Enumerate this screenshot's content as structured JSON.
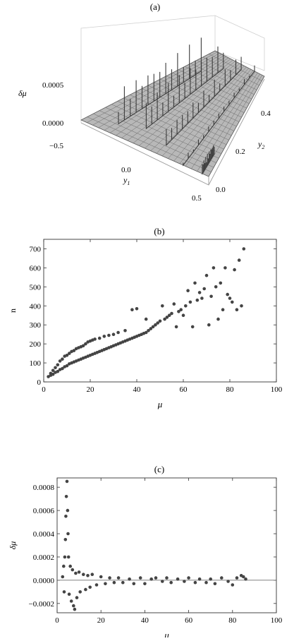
{
  "panels": {
    "a": {
      "label": "(a)",
      "zlabel": "δμ",
      "xlabel": "y",
      "xlabel_sub": "1",
      "ylabel": "y",
      "ylabel_sub": "2",
      "z_ticks": [
        "0.0005",
        "0.0000"
      ],
      "x_ticks": [
        "−0.5",
        "0.0",
        "0.5"
      ],
      "y_ticks": [
        "0.4",
        "0.2",
        "0.0"
      ],
      "surface_color": "#b8b8b8"
    },
    "b": {
      "label": "(b)"
    },
    "c": {
      "label": "(c)"
    }
  },
  "chart_data": [
    {
      "id": "a",
      "type": "surface",
      "title": "(a)",
      "xlabel": "y1",
      "ylabel": "y2",
      "zlabel": "δμ",
      "xlim": [
        -0.5,
        0.5
      ],
      "ylim": [
        0.0,
        0.5
      ],
      "zlim": [
        -0.0001,
        0.0008
      ],
      "x_ticks": [
        -0.5,
        0.0,
        0.5
      ],
      "y_ticks": [
        0.0,
        0.2,
        0.4
      ],
      "z_ticks": [
        0.0,
        0.0005
      ],
      "ridges": [
        {
          "x": -0.3,
          "y0": 0.05,
          "y1": 0.4,
          "peak": 0.0006
        },
        {
          "x": -0.12,
          "y0": 0.08,
          "y1": 0.45,
          "peak": 0.0005
        },
        {
          "x": 0.1,
          "y0": 0.05,
          "y1": 0.48,
          "peak": 0.0003
        },
        {
          "x": 0.3,
          "y0": 0.0,
          "y1": 0.5,
          "peak": 0.0001
        },
        {
          "x": 0.45,
          "y0": 0.0,
          "y1": 0.1,
          "peak": 0.0002
        }
      ]
    },
    {
      "id": "b",
      "type": "scatter",
      "title": "(b)",
      "xlabel": "μ",
      "ylabel": "n",
      "xlim": [
        0,
        100
      ],
      "ylim": [
        0,
        750
      ],
      "x_ticks": [
        0,
        20,
        40,
        60,
        80,
        100
      ],
      "y_ticks": [
        0,
        100,
        200,
        300,
        400,
        500,
        600,
        700
      ],
      "point_color": "#444444",
      "points": [
        [
          2,
          28
        ],
        [
          3,
          35
        ],
        [
          3,
          45
        ],
        [
          4,
          40
        ],
        [
          4,
          60
        ],
        [
          5,
          50
        ],
        [
          5,
          75
        ],
        [
          6,
          55
        ],
        [
          6,
          90
        ],
        [
          7,
          65
        ],
        [
          7,
          110
        ],
        [
          8,
          70
        ],
        [
          8,
          120
        ],
        [
          9,
          80
        ],
        [
          9,
          135
        ],
        [
          10,
          85
        ],
        [
          10,
          140
        ],
        [
          11,
          95
        ],
        [
          11,
          150
        ],
        [
          12,
          100
        ],
        [
          12,
          160
        ],
        [
          13,
          105
        ],
        [
          13,
          165
        ],
        [
          14,
          110
        ],
        [
          14,
          175
        ],
        [
          15,
          115
        ],
        [
          15,
          180
        ],
        [
          16,
          120
        ],
        [
          16,
          185
        ],
        [
          17,
          125
        ],
        [
          17,
          190
        ],
        [
          18,
          130
        ],
        [
          18,
          200
        ],
        [
          19,
          135
        ],
        [
          19,
          210
        ],
        [
          20,
          140
        ],
        [
          20,
          215
        ],
        [
          21,
          145
        ],
        [
          21,
          220
        ],
        [
          22,
          150
        ],
        [
          22,
          225
        ],
        [
          23,
          155
        ],
        [
          24,
          160
        ],
        [
          24,
          230
        ],
        [
          25,
          165
        ],
        [
          26,
          170
        ],
        [
          26,
          240
        ],
        [
          27,
          175
        ],
        [
          28,
          180
        ],
        [
          28,
          245
        ],
        [
          29,
          185
        ],
        [
          30,
          190
        ],
        [
          30,
          250
        ],
        [
          31,
          195
        ],
        [
          32,
          200
        ],
        [
          32,
          260
        ],
        [
          33,
          205
        ],
        [
          34,
          210
        ],
        [
          35,
          215
        ],
        [
          35,
          270
        ],
        [
          36,
          220
        ],
        [
          37,
          225
        ],
        [
          38,
          230
        ],
        [
          38,
          380
        ],
        [
          39,
          235
        ],
        [
          40,
          240
        ],
        [
          40,
          385
        ],
        [
          41,
          245
        ],
        [
          42,
          250
        ],
        [
          43,
          255
        ],
        [
          44,
          260
        ],
        [
          44,
          330
        ],
        [
          45,
          270
        ],
        [
          46,
          280
        ],
        [
          47,
          290
        ],
        [
          48,
          300
        ],
        [
          49,
          310
        ],
        [
          50,
          320
        ],
        [
          51,
          400
        ],
        [
          52,
          330
        ],
        [
          53,
          340
        ],
        [
          54,
          350
        ],
        [
          55,
          360
        ],
        [
          56,
          410
        ],
        [
          57,
          290
        ],
        [
          58,
          370
        ],
        [
          59,
          380
        ],
        [
          60,
          350
        ],
        [
          61,
          400
        ],
        [
          62,
          480
        ],
        [
          63,
          420
        ],
        [
          64,
          290
        ],
        [
          65,
          520
        ],
        [
          66,
          430
        ],
        [
          67,
          470
        ],
        [
          68,
          440
        ],
        [
          69,
          490
        ],
        [
          70,
          560
        ],
        [
          71,
          300
        ],
        [
          72,
          450
        ],
        [
          73,
          600
        ],
        [
          74,
          500
        ],
        [
          75,
          330
        ],
        [
          76,
          520
        ],
        [
          77,
          380
        ],
        [
          78,
          600
        ],
        [
          79,
          460
        ],
        [
          80,
          440
        ],
        [
          81,
          420
        ],
        [
          82,
          590
        ],
        [
          83,
          380
        ],
        [
          84,
          640
        ],
        [
          85,
          400
        ],
        [
          86,
          700
        ]
      ]
    },
    {
      "id": "c",
      "type": "scatter",
      "title": "(c)",
      "xlabel": "μ",
      "ylabel": "δμ",
      "xlim": [
        0,
        100
      ],
      "ylim": [
        -0.00028,
        0.00088
      ],
      "x_ticks": [
        0,
        20,
        40,
        60,
        80,
        100
      ],
      "y_ticks": [
        -0.0002,
        0.0,
        0.0002,
        0.0004,
        0.0006,
        0.0008
      ],
      "point_color": "#444444",
      "points": [
        [
          2.5,
          3e-05
        ],
        [
          3,
          0.00012
        ],
        [
          3.2,
          -0.0001
        ],
        [
          3.5,
          0.0002
        ],
        [
          3.8,
          0.00035
        ],
        [
          4,
          0.00055
        ],
        [
          4.2,
          0.00072
        ],
        [
          4.5,
          0.00085
        ],
        [
          4.8,
          0.0006
        ],
        [
          5,
          0.0004
        ],
        [
          5.2,
          0.0002
        ],
        [
          5.5,
          -0.00012
        ],
        [
          6,
          0.00012
        ],
        [
          6.5,
          -0.00018
        ],
        [
          7,
          9e-05
        ],
        [
          7.5,
          -0.00022
        ],
        [
          8,
          -0.00025
        ],
        [
          8.5,
          6e-05
        ],
        [
          9,
          -0.00015
        ],
        [
          10,
          7e-05
        ],
        [
          10.5,
          -0.0001
        ],
        [
          12,
          5e-05
        ],
        [
          13,
          -8e-05
        ],
        [
          14,
          4e-05
        ],
        [
          15,
          -6e-05
        ],
        [
          16,
          5e-05
        ],
        [
          18,
          -4e-05
        ],
        [
          20,
          3e-05
        ],
        [
          22,
          -3e-05
        ],
        [
          24,
          2e-05
        ],
        [
          26,
          -2e-05
        ],
        [
          28,
          2e-05
        ],
        [
          30,
          -2e-05
        ],
        [
          33,
          1e-05
        ],
        [
          35,
          -3e-05
        ],
        [
          38,
          2e-05
        ],
        [
          40,
          -3e-05
        ],
        [
          43,
          1e-05
        ],
        [
          45,
          2e-05
        ],
        [
          48,
          -1e-05
        ],
        [
          50,
          2e-05
        ],
        [
          52,
          -2e-05
        ],
        [
          55,
          1e-05
        ],
        [
          58,
          -1e-05
        ],
        [
          60,
          2e-05
        ],
        [
          63,
          -2e-05
        ],
        [
          65,
          1e-05
        ],
        [
          68,
          -2e-05
        ],
        [
          70,
          1e-05
        ],
        [
          72,
          -3e-05
        ],
        [
          75,
          2e-05
        ],
        [
          78,
          -1e-05
        ],
        [
          80,
          -4e-05
        ],
        [
          82,
          2e-05
        ],
        [
          84,
          4e-05
        ],
        [
          85,
          3e-05
        ],
        [
          86,
          1e-05
        ]
      ]
    }
  ]
}
